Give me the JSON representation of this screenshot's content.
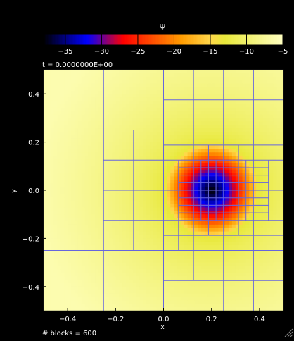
{
  "chart_data": {
    "type": "heatmap",
    "variable_label": "Ψ",
    "time_label": "t = 0.0000000E+00",
    "xlabel": "x",
    "ylabel": "y",
    "blocks_label": "# blocks = 600",
    "xlim": [
      -0.5,
      0.5
    ],
    "ylim": [
      -0.5,
      0.5
    ],
    "x_ticks": [
      -0.4,
      -0.2,
      0.0,
      0.2,
      0.4
    ],
    "x_tick_labels": [
      "−0.4",
      "−0.2",
      "0.0",
      "0.2",
      "0.4"
    ],
    "y_ticks": [
      0.4,
      0.2,
      0.0,
      -0.2,
      -0.4
    ],
    "y_tick_labels": [
      "0.4",
      "0.2",
      "0.0",
      "−0.2",
      "−0.4"
    ],
    "colorbar": {
      "range": [
        -38,
        -5
      ],
      "ticks": [
        -35,
        -30,
        -25,
        -20,
        -15,
        -10,
        -5
      ],
      "tick_labels": [
        "−35",
        "−30",
        "−25",
        "−20",
        "−15",
        "−10",
        "−5"
      ],
      "stops": [
        {
          "value": -38,
          "color": "#000000"
        },
        {
          "value": -32,
          "color": "#0000ff"
        },
        {
          "value": -27,
          "color": "#ff0000"
        },
        {
          "value": -19,
          "color": "#ff9b00"
        },
        {
          "value": -15,
          "color": "#ffd74a"
        },
        {
          "value": -13,
          "color": "#e8e83a"
        },
        {
          "value": -5,
          "color": "#ffffc0"
        }
      ]
    },
    "field": {
      "center": [
        0.2,
        0.0
      ],
      "description_values": {
        "center_min": -38,
        "ring_radius": 0.19,
        "edge_value": -6
      }
    },
    "mesh_color": "#6666dd",
    "mesh_lines": {
      "vertical": [
        {
          "x": -0.25,
          "y": [
            -0.5,
            0.5
          ]
        },
        {
          "x": 0.0,
          "y": [
            -0.5,
            0.5
          ]
        },
        {
          "x": 0.25,
          "y": [
            -0.5,
            0.5
          ]
        },
        {
          "x": 0.375,
          "y": [
            -0.5,
            0.5
          ]
        },
        {
          "x": 0.125,
          "y": [
            -0.375,
            0.5
          ]
        },
        {
          "x": -0.125,
          "y": [
            -0.25,
            0.25
          ]
        },
        {
          "x": 0.0625,
          "y": [
            -0.25,
            0.125
          ]
        },
        {
          "x": 0.1875,
          "y": [
            -0.1875,
            0.1875
          ]
        },
        {
          "x": 0.3125,
          "y": [
            -0.1875,
            0.1875
          ]
        },
        {
          "x": 0.09375,
          "y": [
            -0.125,
            0.125
          ]
        },
        {
          "x": 0.15625,
          "y": [
            -0.125,
            0.125
          ]
        },
        {
          "x": 0.21875,
          "y": [
            -0.125,
            0.125
          ]
        },
        {
          "x": 0.28125,
          "y": [
            -0.125,
            0.125
          ]
        },
        {
          "x": 0.34375,
          "y": [
            -0.125,
            0.125
          ]
        },
        {
          "x": 0.4375,
          "y": [
            -0.125,
            0.125
          ]
        }
      ],
      "horizontal": [
        {
          "y": 0.25,
          "x": [
            -0.5,
            0.5
          ]
        },
        {
          "y": -0.25,
          "x": [
            -0.5,
            0.5
          ]
        },
        {
          "y": 0.375,
          "x": [
            0.0,
            0.5
          ]
        },
        {
          "y": -0.375,
          "x": [
            0.0,
            0.5
          ]
        },
        {
          "y": 0.125,
          "x": [
            -0.25,
            0.5
          ]
        },
        {
          "y": -0.125,
          "x": [
            -0.25,
            0.5
          ]
        },
        {
          "y": 0.0,
          "x": [
            -0.25,
            0.5
          ]
        },
        {
          "y": 0.1875,
          "x": [
            0.0,
            0.5
          ]
        },
        {
          "y": -0.1875,
          "x": [
            0.0,
            0.5
          ]
        },
        {
          "y": 0.09375,
          "x": [
            0.0625,
            0.4375
          ]
        },
        {
          "y": 0.0625,
          "x": [
            0.0625,
            0.4375
          ]
        },
        {
          "y": 0.03125,
          "x": [
            0.0625,
            0.4375
          ]
        },
        {
          "y": -0.03125,
          "x": [
            0.0625,
            0.4375
          ]
        },
        {
          "y": -0.0625,
          "x": [
            0.0625,
            0.4375
          ]
        },
        {
          "y": -0.09375,
          "x": [
            0.0625,
            0.4375
          ]
        }
      ]
    }
  }
}
